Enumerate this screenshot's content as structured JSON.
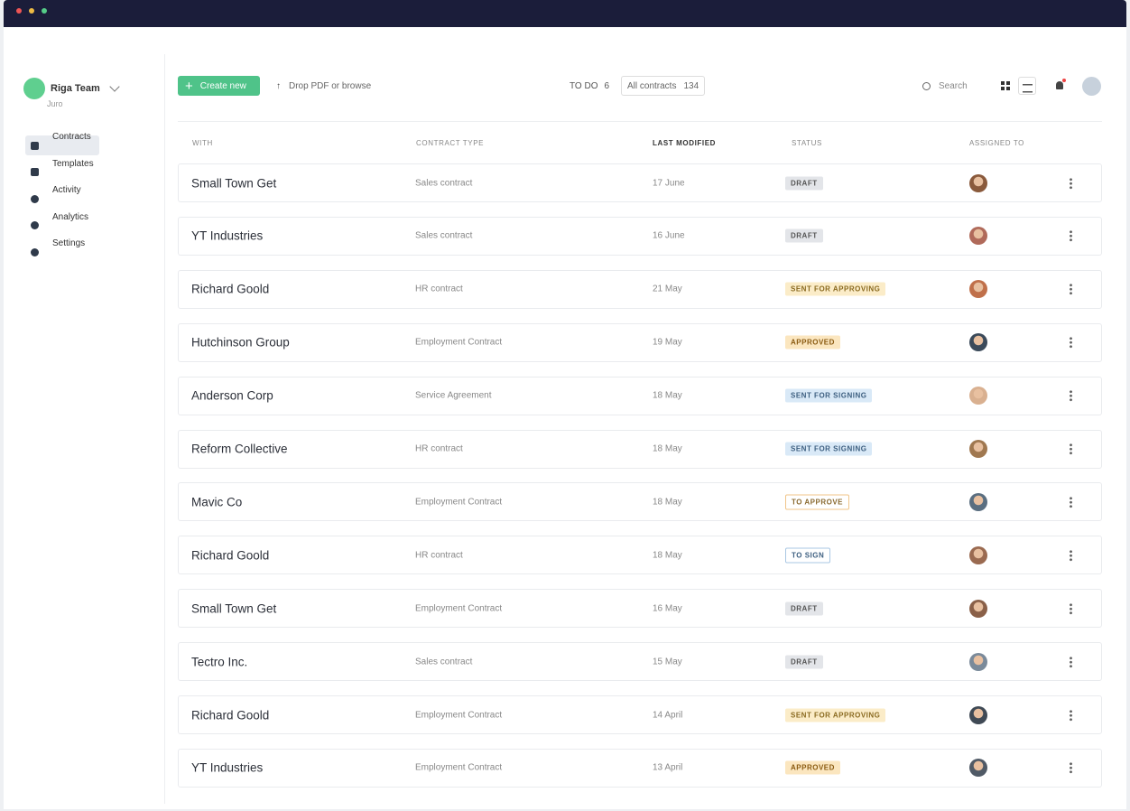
{
  "sidebar": {
    "team": "Riga Team",
    "org": "Juro",
    "nav": [
      "Contracts",
      "Templates",
      "Activity",
      "Analytics",
      "Settings"
    ]
  },
  "toolbar": {
    "create": "Create new",
    "upload": "Drop PDF or browse",
    "todo_label": "TO DO",
    "todo_count": "6",
    "all_label": "All contracts",
    "all_count": "134",
    "search": "Search"
  },
  "table": {
    "headers": [
      "WITH",
      "CONTRACT TYPE",
      "LAST MODIFIED",
      "STATUS",
      "ASSIGNED TO"
    ],
    "rows": [
      [
        "Small Town Get",
        "Sales contract",
        "17 June",
        "DRAFT"
      ],
      [
        "YT Industries",
        "Sales contract",
        "16 June",
        "DRAFT"
      ],
      [
        "Richard Goold",
        "HR contract",
        "21 May",
        "SENT FOR APPROVING"
      ],
      [
        "Hutchinson Group",
        "Employment Contract",
        "19 May",
        "APPROVED"
      ],
      [
        "Anderson Corp",
        "Service Agreement",
        "18 May",
        "SENT FOR SIGNING"
      ],
      [
        "Reform Collective",
        "HR contract",
        "18 May",
        "SENT FOR SIGNING"
      ],
      [
        "Mavic Co",
        "Employment Contract",
        "18 May",
        "TO APPROVE"
      ],
      [
        "Richard Goold",
        "HR contract",
        "18 May",
        "TO SIGN"
      ],
      [
        "Small Town Get",
        "Employment Contract",
        "16 May",
        "DRAFT"
      ],
      [
        "Tectro Inc.",
        "Sales contract",
        "15 May",
        "DRAFT"
      ],
      [
        "Richard Goold",
        "Employment Contract",
        "14 April",
        "SENT FOR APPROVING"
      ],
      [
        "YT Industries",
        "Employment Contract",
        "13 April",
        "APPROVED"
      ]
    ]
  }
}
